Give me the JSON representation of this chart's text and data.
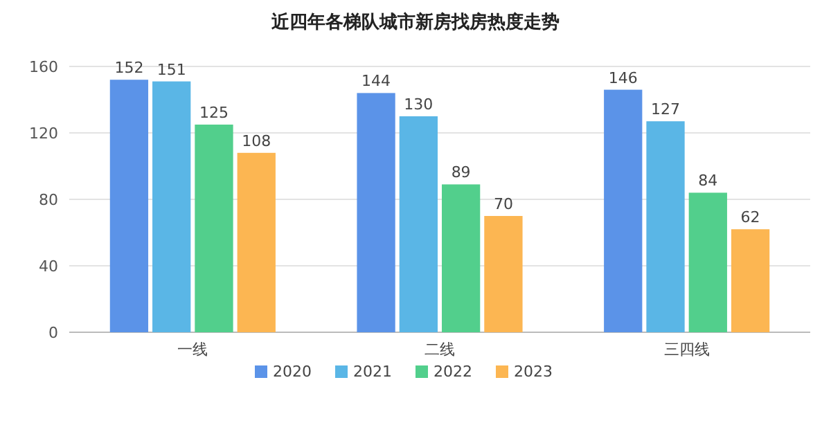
{
  "chart_data": {
    "type": "bar",
    "title": "近四年各梯队城市新房找房热度走势",
    "categories": [
      "一线",
      "二线",
      "三四线"
    ],
    "series": [
      {
        "name": "2020",
        "color": "#5b93e8",
        "values": [
          152,
          144,
          146
        ]
      },
      {
        "name": "2021",
        "color": "#5ab6e6",
        "values": [
          151,
          130,
          127
        ]
      },
      {
        "name": "2022",
        "color": "#52cf8c",
        "values": [
          125,
          89,
          84
        ]
      },
      {
        "name": "2023",
        "color": "#fcb652",
        "values": [
          108,
          70,
          62
        ]
      }
    ],
    "ylim": [
      0,
      160
    ],
    "yticks": [
      0,
      40,
      80,
      120,
      160
    ],
    "grid": "y",
    "legend": "bottom",
    "data_labels": true
  }
}
